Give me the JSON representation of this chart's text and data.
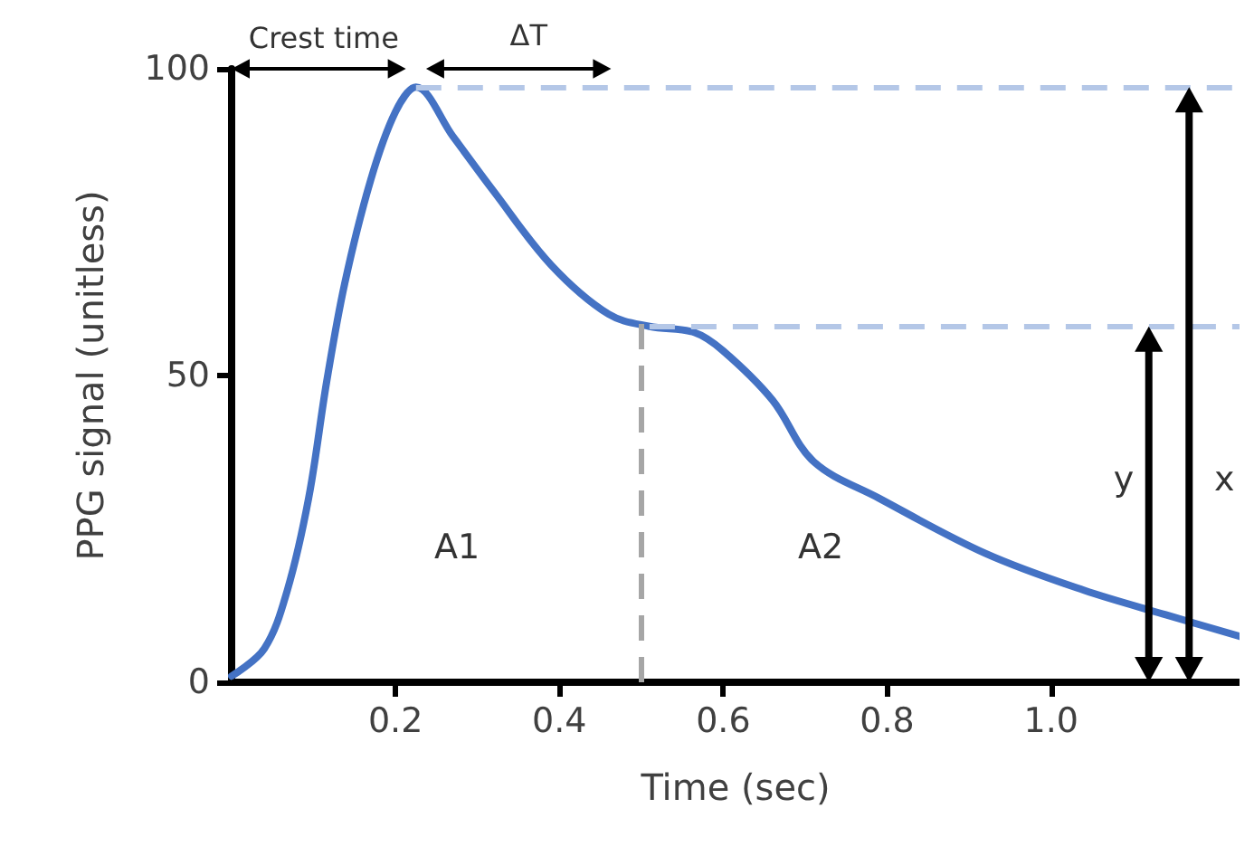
{
  "chart_data": {
    "type": "line",
    "xlabel": "Time (sec)",
    "ylabel": "PPG signal (unitless)",
    "x": [
      0,
      0.04,
      0.068,
      0.094,
      0.116,
      0.138,
      0.17,
      0.2,
      0.225,
      0.27,
      0.32,
      0.39,
      0.46,
      0.51,
      0.565,
      0.6,
      0.66,
      0.71,
      0.79,
      0.92,
      1.04,
      1.14,
      1.23
    ],
    "series": [
      {
        "color": "#4472c4",
        "values": [
          1,
          5.5,
          15,
          30,
          49,
          65,
          82,
          93,
          97,
          89,
          80,
          68,
          60,
          58,
          57,
          54,
          46,
          36,
          30,
          21,
          15,
          11,
          7.5
        ]
      }
    ],
    "xlim": [
      0,
      1.23
    ],
    "xticks": [
      0.2,
      0.4,
      0.6,
      0.8,
      {
        "value": 1,
        "label": "1.0"
      }
    ],
    "ylim": [
      0,
      100
    ],
    "yticks": [
      0,
      50,
      100
    ],
    "grid": false,
    "marker": "none",
    "line_style": "solid",
    "ref_lines": [
      {
        "axis": "y",
        "value": 97,
        "color": "#b4c7e7",
        "line_style": "dashed"
      },
      {
        "axis": "y",
        "value": 58,
        "color": "#b4c7e7",
        "line_style": "dashed"
      },
      {
        "axis": "x",
        "value": 0.5,
        "color": "#a6a6a6",
        "line_style": "dashed"
      }
    ],
    "annotations": [
      "Crest time",
      "ΔT",
      "A1",
      "A2",
      "y",
      "x"
    ]
  }
}
